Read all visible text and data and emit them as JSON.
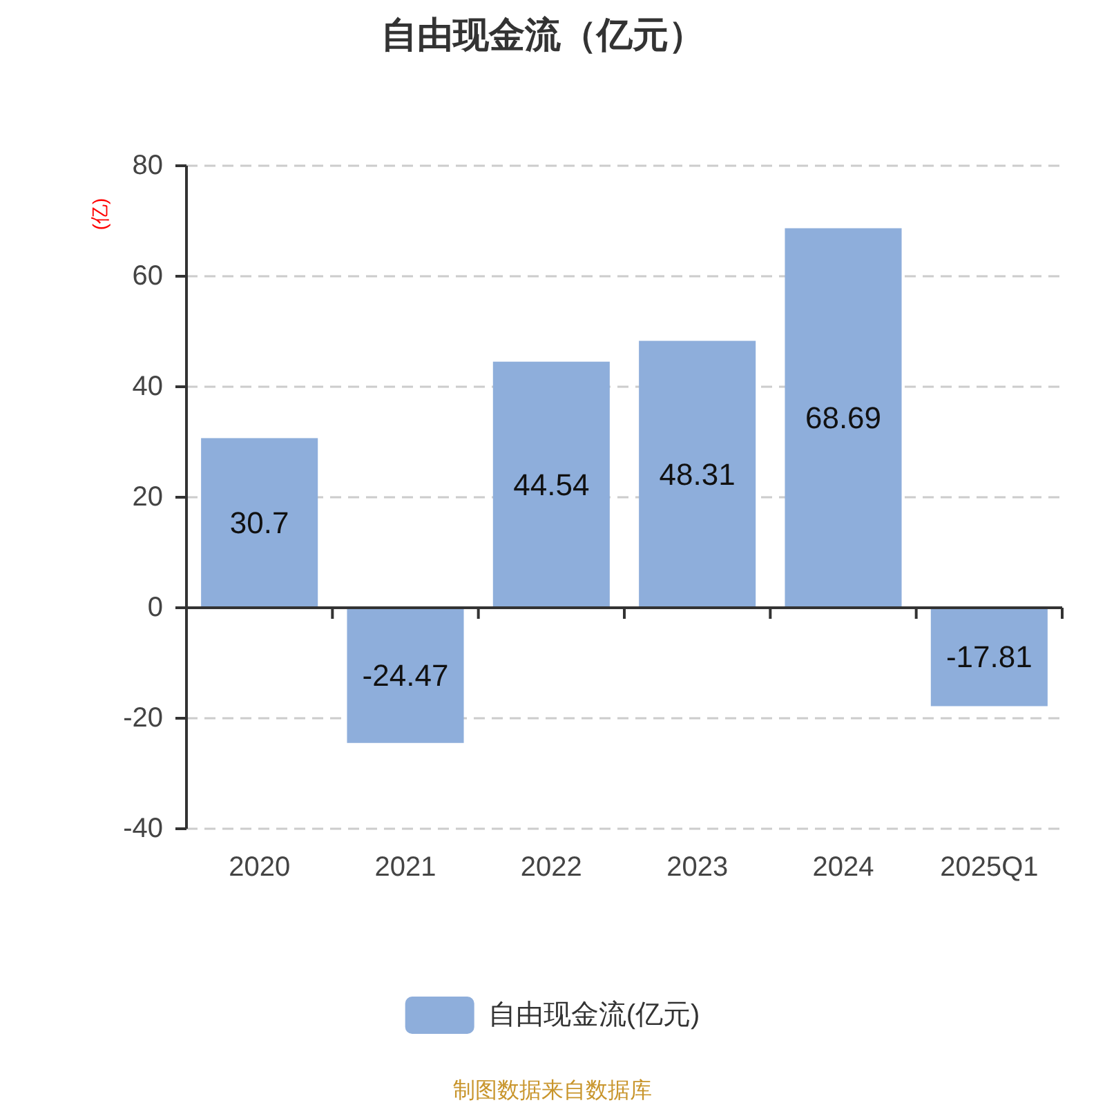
{
  "chart_data": {
    "type": "bar",
    "title": "自由现金流（亿元）",
    "ylabel": "(亿)",
    "categories": [
      "2020",
      "2021",
      "2022",
      "2023",
      "2024",
      "2025Q1"
    ],
    "series": [
      {
        "name": "自由现金流(亿元)",
        "color": "#8eaedb",
        "values": [
          30.7,
          -24.47,
          44.54,
          48.31,
          68.69,
          -17.81
        ]
      }
    ],
    "ylim": [
      -40,
      80
    ],
    "yticks": [
      -40,
      -20,
      0,
      20,
      40,
      60,
      80
    ],
    "grid": "y",
    "legend": "bottom",
    "data_labels": true,
    "annotations": [
      "制图数据来自数据库"
    ]
  }
}
